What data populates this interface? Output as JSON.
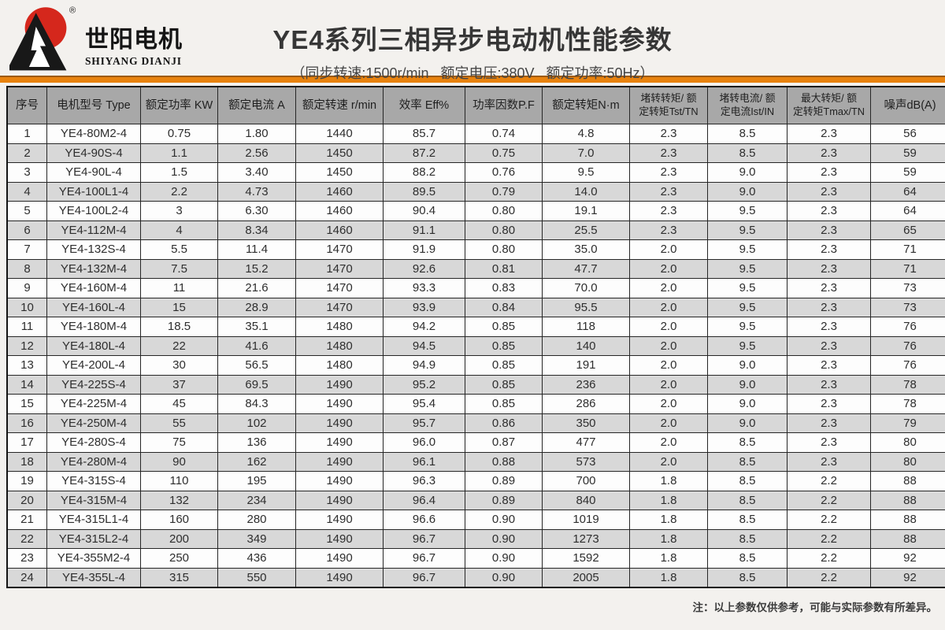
{
  "page": {
    "title": "YE4系列三相异步电动机性能参数",
    "subtitle": "（同步转速:1500r/min   额定电压:380V   额定功率:50Hz）",
    "note": "注：以上参数仅供参考，可能与实际参数有所差异。"
  },
  "logo": {
    "name_cn": "世阳电机",
    "name_en": "SHIYANG DIANJI",
    "registered_mark": "®",
    "colors": {
      "red": "#d5271c",
      "black": "#181818"
    }
  },
  "colors": {
    "accent_orange": "#e8820e",
    "header_bg": "#a8a8a8",
    "row_alt_bg": "#d8d8d8",
    "border": "#262626",
    "page_bg": "#f3f1ee"
  },
  "table": {
    "headers": [
      "序号",
      "电机型号 Type",
      "额定功率 KW",
      "额定电流 A",
      "额定转速 r/min",
      "效率 Eff%",
      "功率因数P.F",
      "额定转矩N·m",
      "堵转转矩/ 额\n定转矩Tst/TN",
      "堵转电流/ 额\n定电流Ist/IN",
      "最大转矩/ 额\n定转矩Tmax/TN",
      "噪声dB(A)"
    ],
    "rows": [
      [
        "1",
        "YE4-80M2-4",
        "0.75",
        "1.80",
        "1440",
        "85.7",
        "0.74",
        "4.8",
        "2.3",
        "8.5",
        "2.3",
        "56"
      ],
      [
        "2",
        "YE4-90S-4",
        "1.1",
        "2.56",
        "1450",
        "87.2",
        "0.75",
        "7.0",
        "2.3",
        "8.5",
        "2.3",
        "59"
      ],
      [
        "3",
        "YE4-90L-4",
        "1.5",
        "3.40",
        "1450",
        "88.2",
        "0.76",
        "9.5",
        "2.3",
        "9.0",
        "2.3",
        "59"
      ],
      [
        "4",
        "YE4-100L1-4",
        "2.2",
        "4.73",
        "1460",
        "89.5",
        "0.79",
        "14.0",
        "2.3",
        "9.0",
        "2.3",
        "64"
      ],
      [
        "5",
        "YE4-100L2-4",
        "3",
        "6.30",
        "1460",
        "90.4",
        "0.80",
        "19.1",
        "2.3",
        "9.5",
        "2.3",
        "64"
      ],
      [
        "6",
        "YE4-112M-4",
        "4",
        "8.34",
        "1460",
        "91.1",
        "0.80",
        "25.5",
        "2.3",
        "9.5",
        "2.3",
        "65"
      ],
      [
        "7",
        "YE4-132S-4",
        "5.5",
        "11.4",
        "1470",
        "91.9",
        "0.80",
        "35.0",
        "2.0",
        "9.5",
        "2.3",
        "71"
      ],
      [
        "8",
        "YE4-132M-4",
        "7.5",
        "15.2",
        "1470",
        "92.6",
        "0.81",
        "47.7",
        "2.0",
        "9.5",
        "2.3",
        "71"
      ],
      [
        "9",
        "YE4-160M-4",
        "11",
        "21.6",
        "1470",
        "93.3",
        "0.83",
        "70.0",
        "2.0",
        "9.5",
        "2.3",
        "73"
      ],
      [
        "10",
        "YE4-160L-4",
        "15",
        "28.9",
        "1470",
        "93.9",
        "0.84",
        "95.5",
        "2.0",
        "9.5",
        "2.3",
        "73"
      ],
      [
        "11",
        "YE4-180M-4",
        "18.5",
        "35.1",
        "1480",
        "94.2",
        "0.85",
        "118",
        "2.0",
        "9.5",
        "2.3",
        "76"
      ],
      [
        "12",
        "YE4-180L-4",
        "22",
        "41.6",
        "1480",
        "94.5",
        "0.85",
        "140",
        "2.0",
        "9.5",
        "2.3",
        "76"
      ],
      [
        "13",
        "YE4-200L-4",
        "30",
        "56.5",
        "1480",
        "94.9",
        "0.85",
        "191",
        "2.0",
        "9.0",
        "2.3",
        "76"
      ],
      [
        "14",
        "YE4-225S-4",
        "37",
        "69.5",
        "1490",
        "95.2",
        "0.85",
        "236",
        "2.0",
        "9.0",
        "2.3",
        "78"
      ],
      [
        "15",
        "YE4-225M-4",
        "45",
        "84.3",
        "1490",
        "95.4",
        "0.85",
        "286",
        "2.0",
        "9.0",
        "2.3",
        "78"
      ],
      [
        "16",
        "YE4-250M-4",
        "55",
        "102",
        "1490",
        "95.7",
        "0.86",
        "350",
        "2.0",
        "9.0",
        "2.3",
        "79"
      ],
      [
        "17",
        "YE4-280S-4",
        "75",
        "136",
        "1490",
        "96.0",
        "0.87",
        "477",
        "2.0",
        "8.5",
        "2.3",
        "80"
      ],
      [
        "18",
        "YE4-280M-4",
        "90",
        "162",
        "1490",
        "96.1",
        "0.88",
        "573",
        "2.0",
        "8.5",
        "2.3",
        "80"
      ],
      [
        "19",
        "YE4-315S-4",
        "110",
        "195",
        "1490",
        "96.3",
        "0.89",
        "700",
        "1.8",
        "8.5",
        "2.2",
        "88"
      ],
      [
        "20",
        "YE4-315M-4",
        "132",
        "234",
        "1490",
        "96.4",
        "0.89",
        "840",
        "1.8",
        "8.5",
        "2.2",
        "88"
      ],
      [
        "21",
        "YE4-315L1-4",
        "160",
        "280",
        "1490",
        "96.6",
        "0.90",
        "1019",
        "1.8",
        "8.5",
        "2.2",
        "88"
      ],
      [
        "22",
        "YE4-315L2-4",
        "200",
        "349",
        "1490",
        "96.7",
        "0.90",
        "1273",
        "1.8",
        "8.5",
        "2.2",
        "88"
      ],
      [
        "23",
        "YE4-355M2-4",
        "250",
        "436",
        "1490",
        "96.7",
        "0.90",
        "1592",
        "1.8",
        "8.5",
        "2.2",
        "92"
      ],
      [
        "24",
        "YE4-355L-4",
        "315",
        "550",
        "1490",
        "96.7",
        "0.90",
        "2005",
        "1.8",
        "8.5",
        "2.2",
        "92"
      ]
    ]
  }
}
